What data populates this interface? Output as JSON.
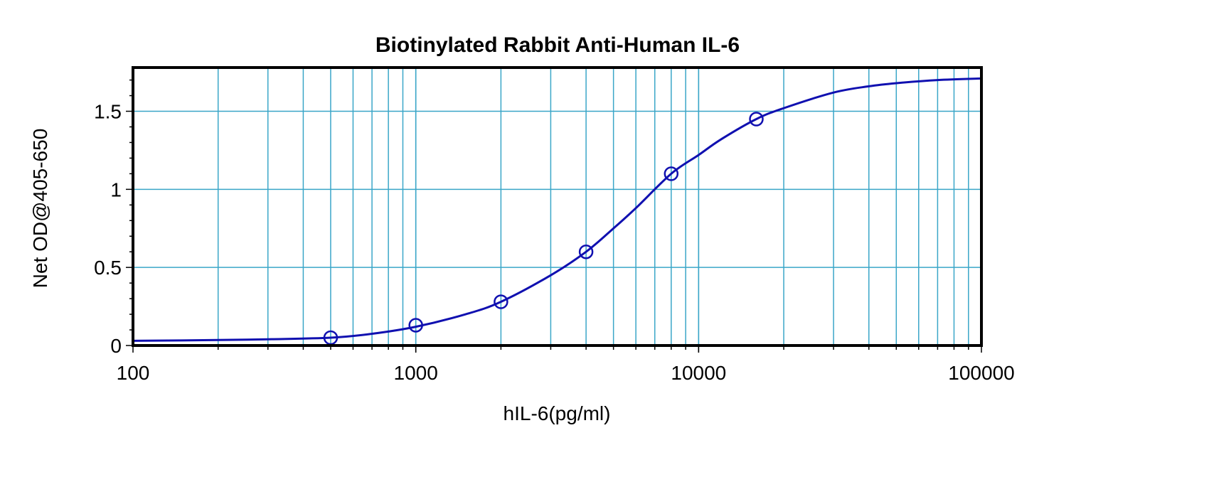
{
  "chart_data": {
    "type": "scatter",
    "title": "Biotinylated Rabbit Anti-Human IL-6",
    "xlabel": "hIL-6(pg/ml)",
    "ylabel": "Net OD@405-650",
    "x_scale": "log",
    "xlim": [
      100,
      100000
    ],
    "ylim": [
      0,
      1.78
    ],
    "x_ticks": [
      {
        "value": 100,
        "label": "100"
      },
      {
        "value": 1000,
        "label": "1000"
      },
      {
        "value": 10000,
        "label": "10000"
      },
      {
        "value": 100000,
        "label": "100000"
      }
    ],
    "y_ticks": [
      {
        "value": 0,
        "label": "0"
      },
      {
        "value": 0.5,
        "label": "0.5"
      },
      {
        "value": 1,
        "label": "1"
      },
      {
        "value": 1.5,
        "label": "1.5"
      }
    ],
    "grid": true,
    "legend": "none",
    "colors": {
      "series": "#1010b0",
      "grid": "#3aa6c8",
      "axis": "#000000"
    },
    "series": [
      {
        "points": [
          {
            "x": 500,
            "y": 0.05
          },
          {
            "x": 1000,
            "y": 0.13
          },
          {
            "x": 2000,
            "y": 0.28
          },
          {
            "x": 4000,
            "y": 0.6
          },
          {
            "x": 8000,
            "y": 1.1
          },
          {
            "x": 16000,
            "y": 1.45
          }
        ],
        "fit_curve": {
          "x": [
            100,
            200,
            300,
            500,
            700,
            1000,
            1500,
            2000,
            3000,
            4000,
            5000,
            6000,
            8000,
            10000,
            12000,
            16000,
            20000,
            30000,
            40000,
            50000,
            70000,
            100000
          ],
          "y": [
            0.03,
            0.035,
            0.04,
            0.05,
            0.075,
            0.12,
            0.2,
            0.28,
            0.45,
            0.6,
            0.75,
            0.88,
            1.1,
            1.22,
            1.32,
            1.45,
            1.52,
            1.62,
            1.66,
            1.68,
            1.7,
            1.71
          ]
        }
      }
    ]
  }
}
